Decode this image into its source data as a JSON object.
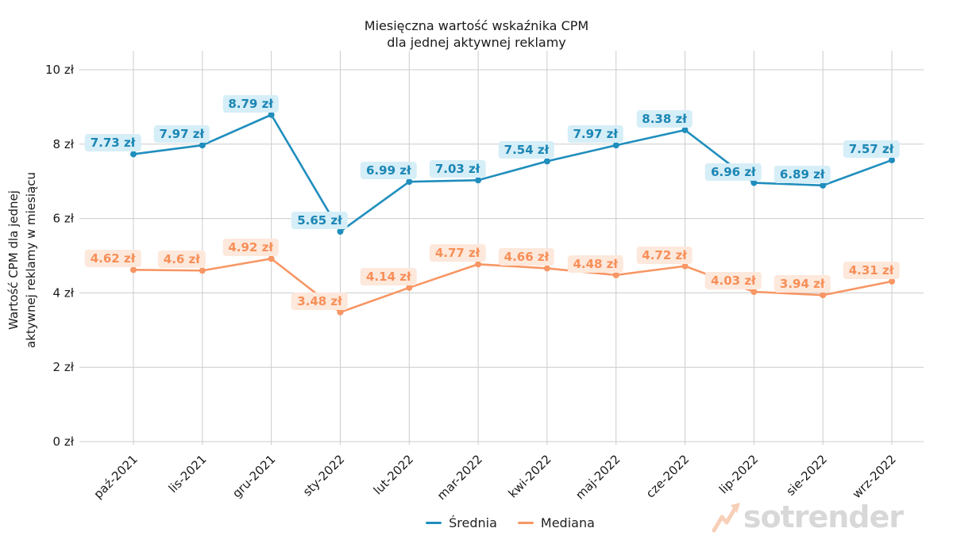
{
  "chart_data": {
    "type": "line",
    "title": "Miesięczna wartość wskaźnika CPM dla jednej aktywnej reklamy",
    "title_lines": [
      "Miesięczna wartość wskaźnika CPM",
      "dla jednej aktywnej reklamy"
    ],
    "ylabel": "Wartość CPM dla jednej aktywnej reklamy w miesiącu",
    "ylabel_lines": [
      "Wartość CPM dla jednej",
      "aktywnej reklamy w miesiącu"
    ],
    "xlabel": "",
    "categories": [
      "paź-2021",
      "lis-2021",
      "gru-2021",
      "sty-2022",
      "lut-2022",
      "mar-2022",
      "kwi-2022",
      "maj-2022",
      "cze-2022",
      "lip-2022",
      "sie-2022",
      "wrz-2022"
    ],
    "series": [
      {
        "id": "srednia",
        "name": "Średnia",
        "color": "#1f8ebd",
        "label_color": "#1b86b4",
        "label_bg": "#d6eef7",
        "values": [
          7.73,
          7.97,
          8.79,
          5.65,
          6.99,
          7.03,
          7.54,
          7.97,
          8.38,
          6.96,
          6.89,
          7.57
        ],
        "value_labels": [
          "7.73 zł",
          "7.97 zł",
          "8.79 zł",
          "5.65 zł",
          "6.99 zł",
          "7.03 zł",
          "7.54 zł",
          "7.97 zł",
          "8.38 zł",
          "6.96 zł",
          "6.89 zł",
          "7.57 zł"
        ]
      },
      {
        "id": "mediana",
        "name": "Mediana",
        "color": "#f79664",
        "label_color": "#f78f58",
        "label_bg": "#fde8dc",
        "values": [
          4.62,
          4.6,
          4.92,
          3.48,
          4.14,
          4.77,
          4.66,
          4.48,
          4.72,
          4.03,
          3.94,
          4.31
        ],
        "value_labels": [
          "4.62 zł",
          "4.6 zł",
          "4.92 zł",
          "3.48 zł",
          "4.14 zł",
          "4.77 zł",
          "4.66 zł",
          "4.48 zł",
          "4.72 zł",
          "4.03 zł",
          "3.94 zł",
          "4.31 zł"
        ]
      }
    ],
    "unit_suffix": " zł",
    "y_ticks": [
      0,
      2,
      4,
      6,
      8,
      10
    ],
    "y_tick_labels": [
      "0 zł",
      "2 zł",
      "4 zł",
      "6 zł",
      "8 zł",
      "10 zł"
    ],
    "ylim": [
      0,
      10.5
    ],
    "grid": true,
    "grid_color": "#cccccc",
    "legend_position": "bottom-center"
  },
  "watermark": {
    "text": "sotrender",
    "text_color": "#d8d8d8",
    "arrow_color": "#f8cfb8"
  }
}
